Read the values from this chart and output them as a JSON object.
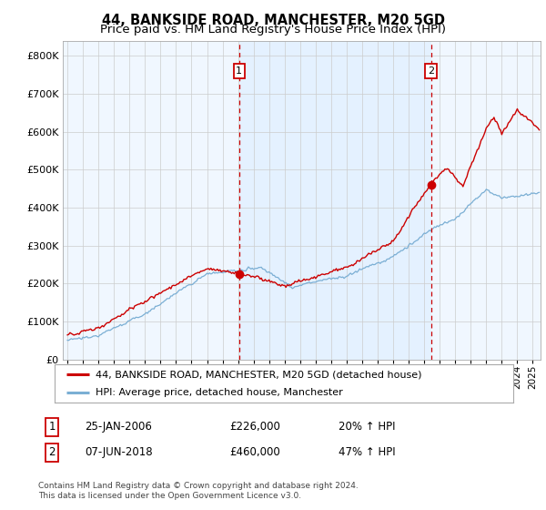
{
  "title": "44, BANKSIDE ROAD, MANCHESTER, M20 5GD",
  "subtitle": "Price paid vs. HM Land Registry's House Price Index (HPI)",
  "ylim": [
    0,
    840000
  ],
  "yticks": [
    0,
    100000,
    200000,
    300000,
    400000,
    500000,
    600000,
    700000,
    800000
  ],
  "ytick_labels": [
    "£0",
    "£100K",
    "£200K",
    "£300K",
    "£400K",
    "£500K",
    "£600K",
    "£700K",
    "£800K"
  ],
  "xlim_start": 1994.7,
  "xlim_end": 2025.5,
  "red_line_color": "#cc0000",
  "blue_line_color": "#7bafd4",
  "vline_color": "#cc0000",
  "shade_color": "#ddeeff",
  "marker1_x": 2006.07,
  "marker1_y": 226000,
  "marker1_label": "1",
  "marker2_x": 2018.44,
  "marker2_y": 460000,
  "marker2_label": "2",
  "legend_label_red": "44, BANKSIDE ROAD, MANCHESTER, M20 5GD (detached house)",
  "legend_label_blue": "HPI: Average price, detached house, Manchester",
  "annotation1_num": "1",
  "annotation1_date": "25-JAN-2006",
  "annotation1_price": "£226,000",
  "annotation1_hpi": "20% ↑ HPI",
  "annotation2_num": "2",
  "annotation2_date": "07-JUN-2018",
  "annotation2_price": "£460,000",
  "annotation2_hpi": "47% ↑ HPI",
  "footer": "Contains HM Land Registry data © Crown copyright and database right 2024.\nThis data is licensed under the Open Government Licence v3.0.",
  "title_fontsize": 10.5,
  "subtitle_fontsize": 9.5,
  "background_color": "#ffffff",
  "grid_color": "#cccccc"
}
